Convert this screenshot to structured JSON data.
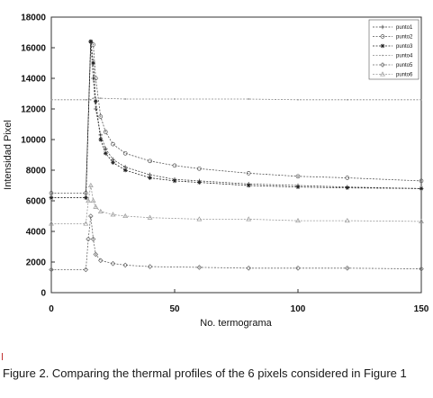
{
  "chart_data": {
    "type": "line",
    "xlabel": "No. termograma",
    "ylabel": "Intensidad Pixel",
    "xlim": [
      0,
      150
    ],
    "ylim": [
      0,
      18000
    ],
    "xticks": [
      0,
      50,
      100,
      150
    ],
    "yticks": [
      0,
      2000,
      4000,
      6000,
      8000,
      10000,
      12000,
      14000,
      16000,
      18000
    ],
    "grid": false,
    "legend_position": "top-right",
    "series": [
      {
        "name": "punto1",
        "marker": "plus",
        "color": "#444444",
        "x": [
          0,
          14,
          16,
          17,
          18,
          20,
          22,
          25,
          30,
          40,
          50,
          60,
          80,
          100,
          120,
          150
        ],
        "y": [
          6200,
          6200,
          16400,
          14000,
          12000,
          10300,
          9400,
          8700,
          8200,
          7700,
          7400,
          7300,
          7100,
          7000,
          6900,
          6800
        ]
      },
      {
        "name": "punto2",
        "marker": "circle",
        "color": "#555555",
        "x": [
          0,
          14,
          16,
          17,
          18,
          20,
          22,
          25,
          30,
          40,
          50,
          60,
          80,
          100,
          120,
          150
        ],
        "y": [
          6500,
          6500,
          16400,
          16200,
          14000,
          11500,
          10500,
          9700,
          9100,
          8600,
          8300,
          8100,
          7800,
          7600,
          7500,
          7300
        ]
      },
      {
        "name": "punto3",
        "marker": "star",
        "color": "#222222",
        "x": [
          0,
          14,
          16,
          17,
          18,
          20,
          22,
          25,
          30,
          40,
          50,
          60,
          80,
          100,
          120,
          150
        ],
        "y": [
          6200,
          6200,
          16400,
          15000,
          12500,
          10000,
          9100,
          8500,
          8000,
          7500,
          7300,
          7200,
          7000,
          6900,
          6850,
          6800
        ]
      },
      {
        "name": "punto4",
        "marker": "point",
        "color": "#888888",
        "x": [
          0,
          14,
          16,
          17,
          18,
          20,
          30,
          50,
          80,
          100,
          120,
          150
        ],
        "y": [
          12600,
          12600,
          12600,
          12700,
          12700,
          12700,
          12650,
          12650,
          12650,
          12600,
          12600,
          12600
        ]
      },
      {
        "name": "punto5",
        "marker": "diamond",
        "color": "#666666",
        "x": [
          0,
          14,
          15,
          16,
          17,
          18,
          20,
          25,
          30,
          40,
          60,
          80,
          100,
          120,
          150
        ],
        "y": [
          1500,
          1500,
          3500,
          5000,
          3500,
          2500,
          2100,
          1900,
          1800,
          1700,
          1650,
          1600,
          1600,
          1600,
          1550
        ]
      },
      {
        "name": "punto6",
        "marker": "triangle",
        "color": "#999999",
        "x": [
          0,
          14,
          15,
          16,
          17,
          18,
          20,
          25,
          30,
          40,
          60,
          80,
          100,
          120,
          150
        ],
        "y": [
          4500,
          4500,
          6000,
          7000,
          6000,
          5600,
          5300,
          5100,
          5000,
          4900,
          4800,
          4800,
          4700,
          4700,
          4650
        ]
      }
    ]
  },
  "caption": "Figure 2. Comparing the thermal profiles of the 6 pixels considered in Figure 1"
}
